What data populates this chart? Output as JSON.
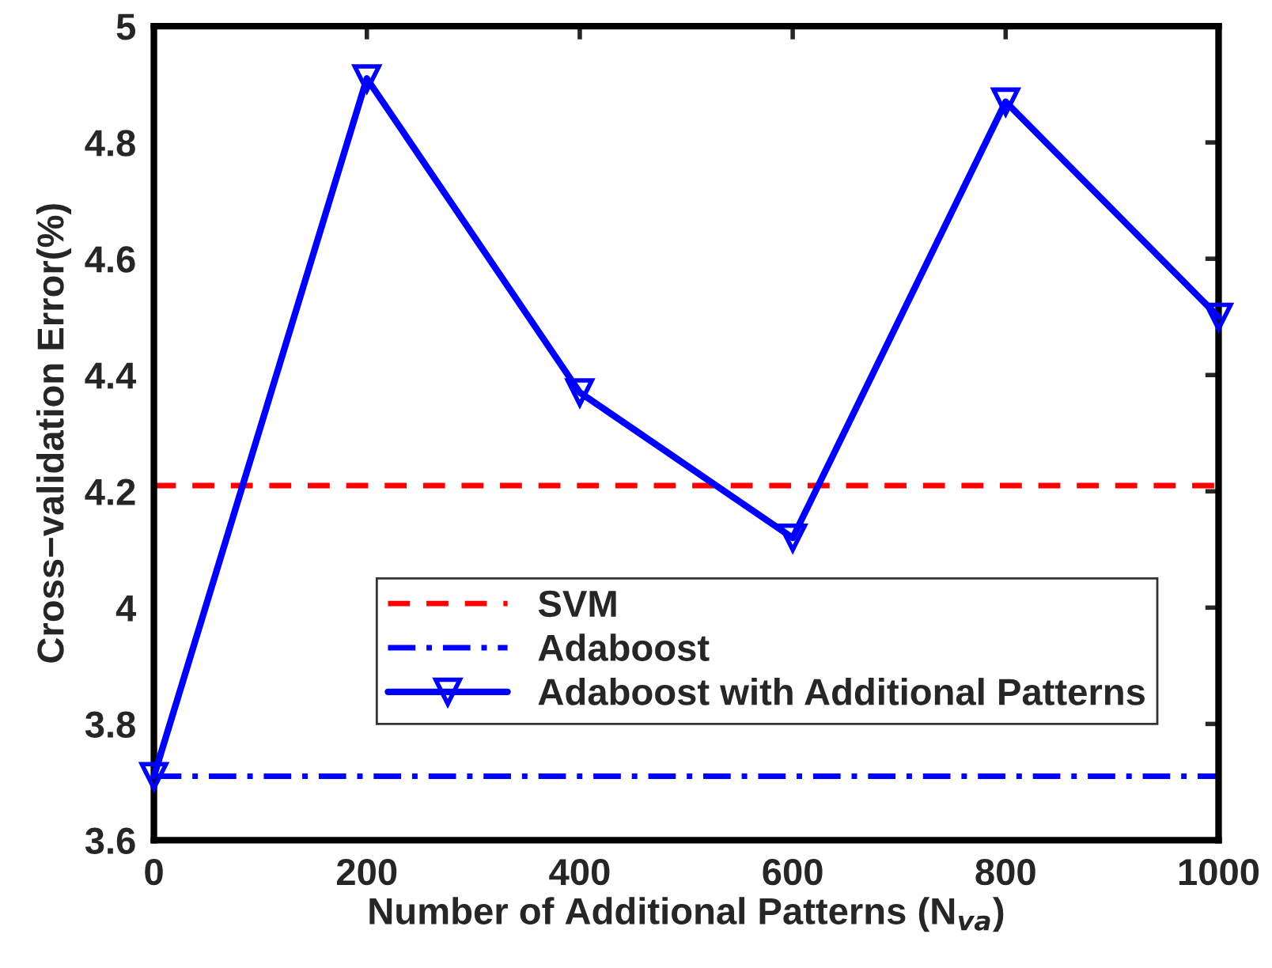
{
  "chart_data": {
    "type": "line",
    "xlabel": "Number of Additional Patterns (N$_{va}$)",
    "ylabel": "Cross−validation Error(%)",
    "x": [
      0,
      200,
      400,
      600,
      800,
      1000
    ],
    "series": [
      {
        "name": "Adaboost with Additional Patterns",
        "color": "#0000ff",
        "values": [
          3.71,
          4.91,
          4.37,
          4.12,
          4.87,
          4.5
        ],
        "marker": "triangle",
        "line_style": "solid"
      }
    ],
    "ref_lines": [
      {
        "axis": "y",
        "value": 4.21,
        "label": "SVM",
        "color": "#ff0000",
        "line_style": "dashed"
      },
      {
        "axis": "y",
        "value": 3.71,
        "label": "Adaboost",
        "color": "#0000ff",
        "line_style": "dashdot"
      }
    ],
    "xlim": [
      0,
      1000
    ],
    "xticks": [
      0,
      200,
      400,
      600,
      800,
      1000
    ],
    "ylim": [
      3.6,
      5
    ],
    "yticks": [
      3.6,
      3.8,
      4,
      4.2,
      4.4,
      4.6,
      4.8,
      5
    ],
    "grid": false,
    "legend": "bottom right"
  }
}
